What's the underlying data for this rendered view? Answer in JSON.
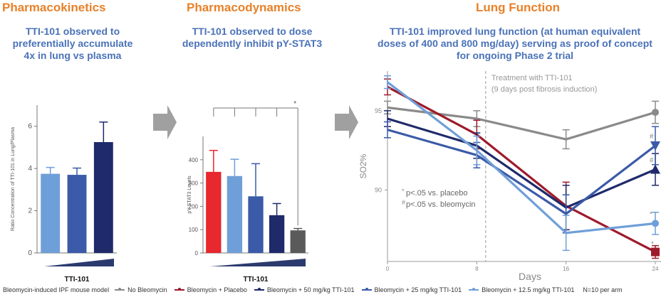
{
  "panels": {
    "pk": {
      "title": "Pharmacokinetics",
      "subtitle": "TTI-101 observed to preferentially accumulate 4x in lung vs plasma"
    },
    "pd": {
      "title": "Pharmacodynamics",
      "subtitle": "TTI-101 observed to dose dependently inhibit pY-STAT3"
    },
    "lf": {
      "title": "Lung Function",
      "subtitle": "TTI-101 improved lung function (at human equivalent doses of 400 and 800 mg/day) serving as proof of concept for ongoing Phase 2 trial"
    }
  },
  "colors": {
    "title": "#e8812a",
    "subtitle": "#4a72b8",
    "no_bleo": "#8a8a8a",
    "placebo": "#9e1b2b",
    "d50": "#1f2a6b",
    "d25": "#3b5aa8",
    "d12": "#6f9fd8"
  },
  "legend": {
    "model_label": "Bleomycin-induced IPF mouse model",
    "items": [
      {
        "label": "No Bleomycin",
        "color": "#8a8a8a"
      },
      {
        "label": "Bleomycin + Placebo",
        "color": "#9e1b2b"
      },
      {
        "label": "Bleomycin + 50 mg/kg TTI-101",
        "color": "#1f2a6b"
      },
      {
        "label": "Bleomycin + 25 mg/kg TTI-101",
        "color": "#3b5aa8"
      },
      {
        "label": "Bleomycin + 12.5 mg/kg TTI-101",
        "color": "#6f9fd8"
      }
    ],
    "n_text": "N=10 per arm"
  },
  "chart_data": [
    {
      "id": "pk",
      "type": "bar",
      "ylabel": "Ratio Concentration of TTI-101 in Lung/Plasma",
      "xlabel": "TTI-101",
      "ylim": [
        0,
        7
      ],
      "yticks": [
        0,
        2,
        4,
        6
      ],
      "values": [
        3.75,
        3.7,
        5.25
      ],
      "errors": [
        0.3,
        0.32,
        0.95
      ],
      "colors": [
        "#6f9fd8",
        "#3b5aa8",
        "#1f2a6b"
      ]
    },
    {
      "id": "pd",
      "type": "bar",
      "ylabel": "pY-STAT3 Levels",
      "xlabel": "TTI-101",
      "ylim": [
        0,
        500
      ],
      "yticks": [
        0,
        100,
        200,
        300,
        400
      ],
      "values": [
        348,
        330,
        243,
        162,
        97
      ],
      "errors": [
        92,
        72,
        140,
        50,
        8
      ],
      "colors": [
        "#e8272e",
        "#6f9fd8",
        "#3b5aa8",
        "#1f2a6b",
        "#5a5a5a"
      ],
      "significance_marker": "*"
    },
    {
      "id": "lf",
      "type": "line",
      "xlabel": "Days",
      "ylabel": "SO2%",
      "xlim": [
        0,
        24
      ],
      "ylim": [
        85.5,
        97.5
      ],
      "xticks": [
        0,
        8,
        16,
        24
      ],
      "yticks": [
        90,
        95
      ],
      "treatment_day": 8.8,
      "annotation": [
        "Treatment with TTI-101",
        "(9 days post fibrosis induction)"
      ],
      "footnotes": [
        "p<.05 vs. placebo",
        "p<.05 vs. bleomycin"
      ],
      "footnote_marks": [
        "*",
        "#"
      ],
      "x": [
        0,
        8,
        16,
        24
      ],
      "series": [
        {
          "name": "No Bleomycin",
          "color": "#8a8a8a",
          "values": [
            95.2,
            94.5,
            93.2,
            94.9
          ],
          "errors": [
            0.4,
            0.5,
            0.6,
            0.7
          ],
          "marker": "circle"
        },
        {
          "name": "Bleomycin + Placebo",
          "color": "#9e1b2b",
          "values": [
            96.5,
            93.5,
            89.0,
            86.1
          ],
          "errors": [
            0.5,
            0.9,
            1.5,
            0.4
          ],
          "marker": "square"
        },
        {
          "name": "Bleomycin + 50 mg/kg TTI-101",
          "color": "#1f2a6b",
          "values": [
            94.5,
            92.8,
            88.9,
            91.3
          ],
          "errors": [
            0.5,
            0.8,
            1.4,
            1.0
          ],
          "marker": "triangle",
          "mark": "#"
        },
        {
          "name": "Bleomycin + 25 mg/kg TTI-101",
          "color": "#3b5aa8",
          "values": [
            93.8,
            92.2,
            88.5,
            92.8
          ],
          "errors": [
            0.5,
            0.8,
            1.2,
            1.2
          ],
          "marker": "triangle-down",
          "mark": "#"
        },
        {
          "name": "Bleomycin + 12.5 mg/kg TTI-101",
          "color": "#6f9fd8",
          "values": [
            96.8,
            92.5,
            87.3,
            87.9
          ],
          "errors": [
            0.4,
            0.9,
            1.1,
            0.7
          ],
          "marker": "circle",
          "mark": "*"
        }
      ],
      "end_marks": {
        "placebo": "*"
      }
    }
  ]
}
